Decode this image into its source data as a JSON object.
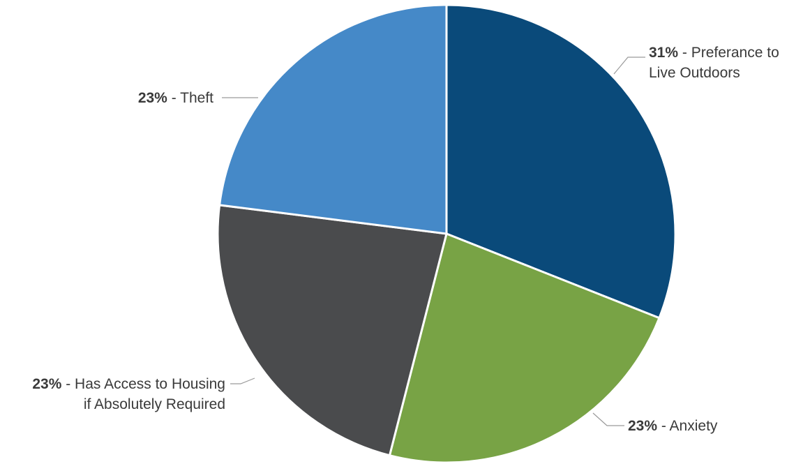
{
  "chart_data": {
    "type": "pie",
    "slices": [
      {
        "percent_label": "31%",
        "label_lines": [
          "Preferance to",
          "Live Outdoors"
        ],
        "value": 31,
        "color": "#0a4a7a"
      },
      {
        "percent_label": "23%",
        "label_lines": [
          "Anxiety"
        ],
        "value": 23,
        "color": "#78a345"
      },
      {
        "percent_label": "23%",
        "label_lines": [
          "Has Access to Housing",
          "if Absolutely Required"
        ],
        "value": 23,
        "color": "#4a4b4d"
      },
      {
        "percent_label": "23%",
        "label_lines": [
          "Theft"
        ],
        "value": 23,
        "color": "#4589c8"
      }
    ],
    "separator": " - "
  }
}
